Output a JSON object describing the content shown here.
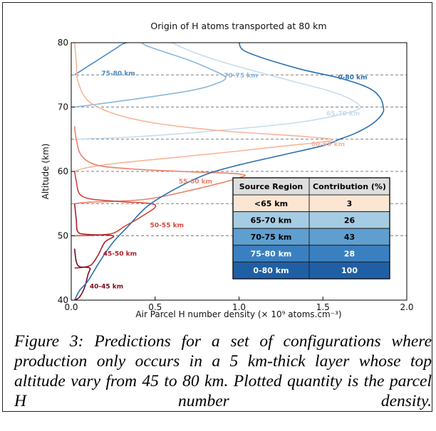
{
  "caption": "Figure 3: Predictions for a set of configurations where production only occurs in a 5 km-thick layer whose top altitude vary from 45 to 80 km. Plotted quantity is the parcel H number density.",
  "chart_data": {
    "type": "line",
    "title": "Origin of H atoms transported at 80 km",
    "xlabel": "Air Parcel H number density (× 10⁹ atoms.cm⁻³)",
    "ylabel": "Altitude (km)",
    "xlim": [
      0,
      2.0
    ],
    "ylim": [
      40,
      80
    ],
    "xticks": [
      "0.0",
      "0.5",
      "1.0",
      "1.5",
      "2.0"
    ],
    "yticks": [
      "40",
      "50",
      "60",
      "70",
      "80"
    ],
    "dashed_gridlines_y": [
      50,
      55,
      60,
      65,
      70,
      75,
      80
    ],
    "series": [
      {
        "name": "0-80 km",
        "color": "#2a6fb0",
        "points": [
          [
            0.02,
            40
          ],
          [
            0.05,
            41.5
          ],
          [
            0.1,
            43
          ],
          [
            0.17,
            46
          ],
          [
            0.25,
            49
          ],
          [
            0.34,
            51.5
          ],
          [
            0.45,
            54.5
          ],
          [
            0.6,
            57
          ],
          [
            0.8,
            59.5
          ],
          [
            1.0,
            61
          ],
          [
            1.25,
            62.5
          ],
          [
            1.5,
            64
          ],
          [
            1.6,
            65
          ],
          [
            1.7,
            66
          ],
          [
            1.8,
            67.5
          ],
          [
            1.855,
            69
          ],
          [
            1.86,
            70
          ],
          [
            1.84,
            71.5
          ],
          [
            1.77,
            73
          ],
          [
            1.6,
            74.5
          ],
          [
            1.35,
            76
          ],
          [
            1.05,
            78.5
          ],
          [
            1.0,
            80
          ]
        ]
      },
      {
        "name": "75-80 km",
        "color": "#4a8cc4",
        "points": [
          [
            0.02,
            75
          ],
          [
            0.08,
            76
          ],
          [
            0.14,
            77
          ],
          [
            0.2,
            78
          ],
          [
            0.26,
            79
          ],
          [
            0.3,
            79.7
          ],
          [
            0.33,
            80
          ]
        ]
      },
      {
        "name": "70-75 km",
        "color": "#8ab6da",
        "points": [
          [
            0.02,
            70
          ],
          [
            0.2,
            70.6
          ],
          [
            0.45,
            71.5
          ],
          [
            0.7,
            72.5
          ],
          [
            0.85,
            73.5
          ],
          [
            0.92,
            74.6
          ],
          [
            0.82,
            76
          ],
          [
            0.7,
            77.3
          ],
          [
            0.55,
            78.6
          ],
          [
            0.45,
            79.5
          ],
          [
            0.42,
            80
          ]
        ]
      },
      {
        "name": "65-70 km",
        "color": "#c7dcee",
        "points": [
          [
            0.02,
            65
          ],
          [
            0.4,
            65.4
          ],
          [
            0.9,
            66.4
          ],
          [
            1.35,
            67.6
          ],
          [
            1.6,
            68.8
          ],
          [
            1.72,
            69.8
          ],
          [
            1.68,
            71
          ],
          [
            1.55,
            72.4
          ],
          [
            1.35,
            73.8
          ],
          [
            1.12,
            75.4
          ],
          [
            0.9,
            77
          ],
          [
            0.72,
            78.6
          ],
          [
            0.6,
            80
          ]
        ]
      },
      {
        "name": "60-65 km",
        "color": "#f6b49a",
        "points": [
          [
            0.02,
            60
          ],
          [
            0.08,
            60.5
          ],
          [
            0.25,
            61.2
          ],
          [
            0.55,
            62
          ],
          [
            0.9,
            62.9
          ],
          [
            1.25,
            63.9
          ],
          [
            1.55,
            64.8
          ],
          [
            1.4,
            65.4
          ],
          [
            0.9,
            66.3
          ],
          [
            0.5,
            67.5
          ],
          [
            0.25,
            69
          ],
          [
            0.1,
            71
          ],
          [
            0.04,
            74
          ],
          [
            0.03,
            77
          ],
          [
            0.02,
            80
          ]
        ]
      },
      {
        "name": "55-60 km",
        "color": "#eb8068",
        "points": [
          [
            0.02,
            55
          ],
          [
            0.1,
            55.2
          ],
          [
            0.3,
            55.4
          ],
          [
            0.48,
            55.8
          ],
          [
            0.75,
            57.3
          ],
          [
            1.0,
            59
          ],
          [
            1.0,
            59.6
          ],
          [
            0.65,
            60
          ],
          [
            0.35,
            60.4
          ],
          [
            0.15,
            61
          ],
          [
            0.06,
            62.5
          ],
          [
            0.03,
            65
          ],
          [
            0.02,
            67
          ]
        ]
      },
      {
        "name": "50-55 km",
        "color": "#d4463a",
        "points": [
          [
            0.02,
            50
          ],
          [
            0.15,
            50.1
          ],
          [
            0.25,
            50.4
          ],
          [
            0.32,
            51.5
          ],
          [
            0.42,
            53
          ],
          [
            0.5,
            54.8
          ],
          [
            0.3,
            55.3
          ],
          [
            0.12,
            55.7
          ],
          [
            0.05,
            56.5
          ],
          [
            0.03,
            58.5
          ],
          [
            0.02,
            60
          ]
        ]
      },
      {
        "name": "45-50 km",
        "color": "#b01e2a",
        "points": [
          [
            0.02,
            45
          ],
          [
            0.07,
            45.1
          ],
          [
            0.12,
            45.5
          ],
          [
            0.16,
            47
          ],
          [
            0.2,
            49
          ],
          [
            0.25,
            50
          ],
          [
            0.1,
            50.2
          ],
          [
            0.04,
            50.6
          ],
          [
            0.03,
            52.5
          ],
          [
            0.02,
            55
          ]
        ]
      },
      {
        "name": "40-45 km",
        "color": "#7a0a1e",
        "points": [
          [
            0.02,
            40
          ],
          [
            0.05,
            40.5
          ],
          [
            0.08,
            42
          ],
          [
            0.1,
            44
          ],
          [
            0.11,
            45
          ],
          [
            0.05,
            45.2
          ],
          [
            0.03,
            46
          ],
          [
            0.02,
            48
          ]
        ]
      }
    ],
    "labels": [
      {
        "text": "0-80 km",
        "x": 1.59,
        "y": 74.3,
        "color": "#2a6fb0"
      },
      {
        "text": "75-80 km",
        "x": 0.18,
        "y": 74.9,
        "color": "#4a8cc4"
      },
      {
        "text": "70-75 km",
        "x": 0.91,
        "y": 74.6,
        "color": "#8ab6da"
      },
      {
        "text": "65-70 km",
        "x": 1.52,
        "y": 68.7,
        "color": "#c7dcee"
      },
      {
        "text": "60-65 km",
        "x": 1.43,
        "y": 63.9,
        "color": "#f6b49a"
      },
      {
        "text": "55-60 km",
        "x": 0.64,
        "y": 58.1,
        "color": "#eb8068"
      },
      {
        "text": "50-55 km",
        "x": 0.47,
        "y": 51.3,
        "color": "#d4463a"
      },
      {
        "text": "45-50 km",
        "x": 0.19,
        "y": 46.9,
        "color": "#b01e2a"
      },
      {
        "text": "40-45 km",
        "x": 0.11,
        "y": 41.8,
        "color": "#7a0a1e"
      }
    ],
    "table": {
      "headers": [
        "Source Region",
        "Contribution (%)"
      ],
      "header_color": "#dedede",
      "rows": [
        {
          "region": "<65 km",
          "contribution": "3",
          "color": "#fde5d3",
          "text_color": "#000000"
        },
        {
          "region": "65-70 km",
          "contribution": "26",
          "color": "#a6cce4",
          "text_color": "#000000"
        },
        {
          "region": "70-75 km",
          "contribution": "43",
          "color": "#5e9fd0",
          "text_color": "#000000"
        },
        {
          "region": "75-80 km",
          "contribution": "28",
          "color": "#3a80c0",
          "text_color": "#ffffff"
        },
        {
          "region": "0-80 km",
          "contribution": "100",
          "color": "#1f5fa6",
          "text_color": "#ffffff"
        }
      ]
    }
  }
}
